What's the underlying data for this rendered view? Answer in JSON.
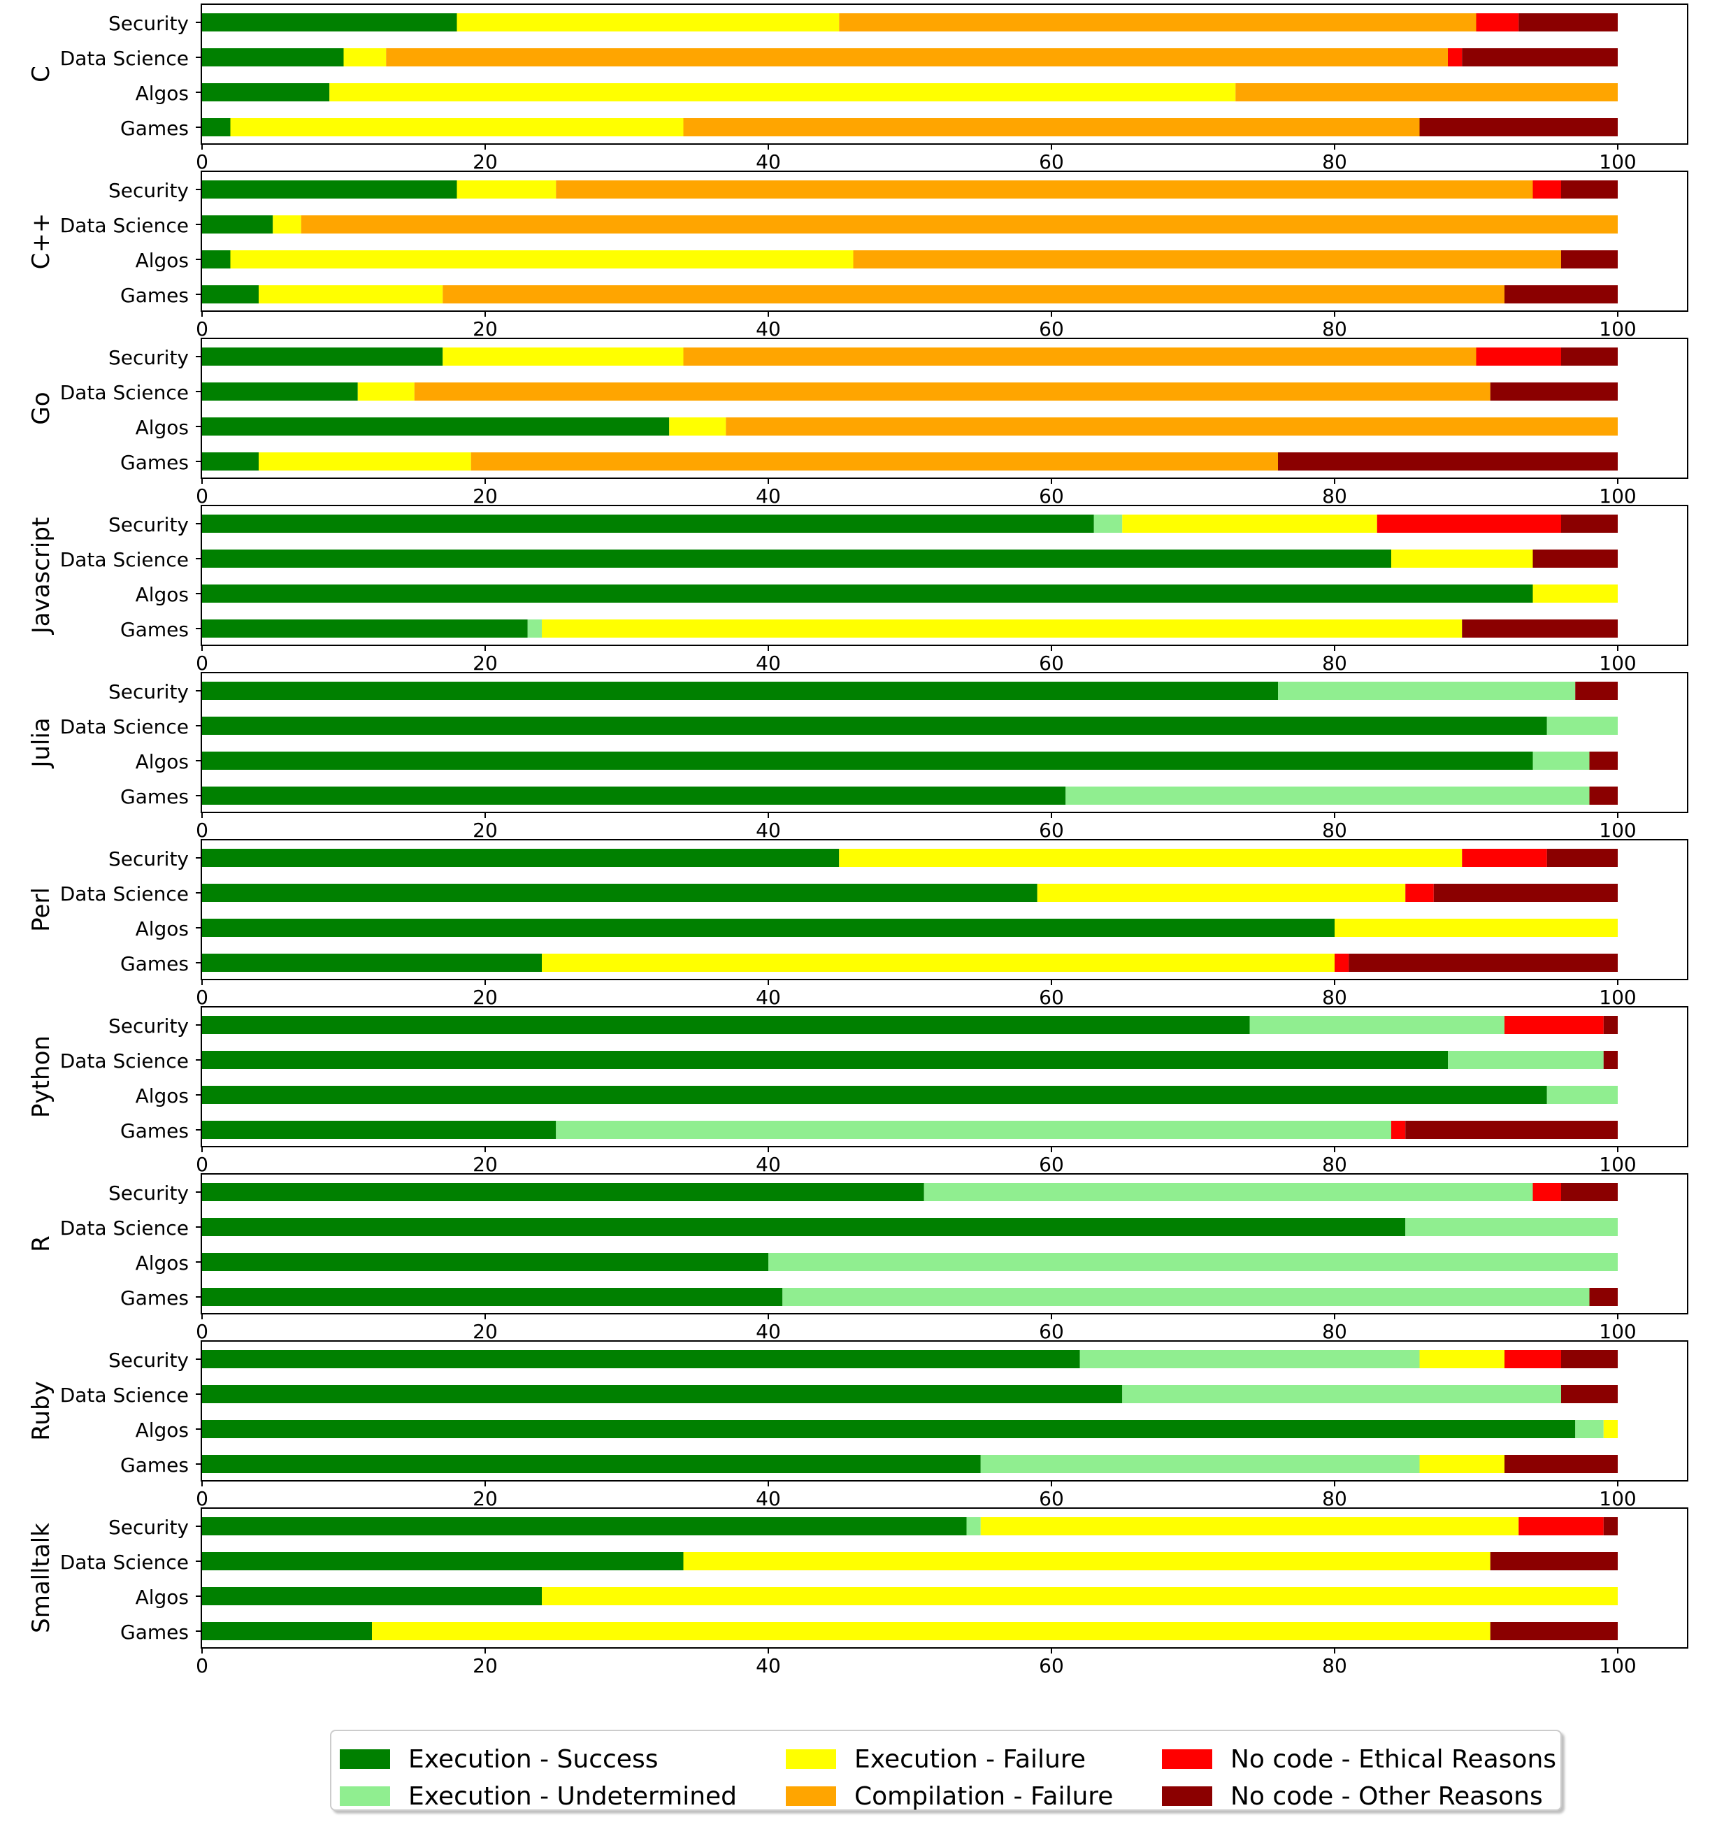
{
  "chart_data": {
    "type": "bar",
    "orientation": "horizontal",
    "stacked": true,
    "xlim": [
      0,
      100
    ],
    "xticks": [
      "0",
      "20",
      "40",
      "60",
      "80",
      "100"
    ],
    "grid": false,
    "legend_position": "bottom-center",
    "series_order": [
      "success",
      "undetermined",
      "exec_fail",
      "compile_fail",
      "ethical",
      "other"
    ],
    "series_colors": {
      "success": "#008000",
      "undetermined": "#90ee90",
      "exec_fail": "#ffff00",
      "compile_fail": "#ffa500",
      "ethical": "#ff0000",
      "other": "#8b0000"
    },
    "legend": [
      {
        "key": "success",
        "label": "Execution - Success"
      },
      {
        "key": "undetermined",
        "label": "Execution - Undetermined"
      },
      {
        "key": "exec_fail",
        "label": "Execution - Failure"
      },
      {
        "key": "compile_fail",
        "label": "Compilation - Failure"
      },
      {
        "key": "ethical",
        "label": "No code - Ethical Reasons"
      },
      {
        "key": "other",
        "label": "No code - Other Reasons"
      }
    ],
    "panels": [
      {
        "language": "C",
        "rows": [
          {
            "category": "Security",
            "values": [
              18,
              0,
              27,
              45,
              3,
              7
            ]
          },
          {
            "category": "Data Science",
            "values": [
              10,
              0,
              3,
              75,
              1,
              11
            ]
          },
          {
            "category": "Algos",
            "values": [
              9,
              0,
              64,
              27,
              0,
              0
            ]
          },
          {
            "category": "Games",
            "values": [
              2,
              0,
              32,
              52,
              0,
              14
            ]
          }
        ]
      },
      {
        "language": "C++",
        "rows": [
          {
            "category": "Security",
            "values": [
              18,
              0,
              7,
              69,
              2,
              4
            ]
          },
          {
            "category": "Data Science",
            "values": [
              5,
              0,
              2,
              93,
              0,
              0
            ]
          },
          {
            "category": "Algos",
            "values": [
              2,
              0,
              44,
              50,
              0,
              4
            ]
          },
          {
            "category": "Games",
            "values": [
              4,
              0,
              13,
              75,
              0,
              8
            ]
          }
        ]
      },
      {
        "language": "Go",
        "rows": [
          {
            "category": "Security",
            "values": [
              17,
              0,
              17,
              56,
              6,
              4
            ]
          },
          {
            "category": "Data Science",
            "values": [
              11,
              0,
              4,
              76,
              0,
              9
            ]
          },
          {
            "category": "Algos",
            "values": [
              33,
              0,
              4,
              63,
              0,
              0
            ]
          },
          {
            "category": "Games",
            "values": [
              4,
              0,
              15,
              57,
              0,
              24
            ]
          }
        ]
      },
      {
        "language": "Javascript",
        "rows": [
          {
            "category": "Security",
            "values": [
              63,
              2,
              18,
              0,
              13,
              4
            ]
          },
          {
            "category": "Data Science",
            "values": [
              84,
              0,
              10,
              0,
              0,
              6
            ]
          },
          {
            "category": "Algos",
            "values": [
              94,
              0,
              6,
              0,
              0,
              0
            ]
          },
          {
            "category": "Games",
            "values": [
              23,
              1,
              65,
              0,
              0,
              11
            ]
          }
        ]
      },
      {
        "language": "Julia",
        "rows": [
          {
            "category": "Security",
            "values": [
              76,
              21,
              0,
              0,
              0,
              3
            ]
          },
          {
            "category": "Data Science",
            "values": [
              95,
              5,
              0,
              0,
              0,
              0
            ]
          },
          {
            "category": "Algos",
            "values": [
              94,
              4,
              0,
              0,
              0,
              2
            ]
          },
          {
            "category": "Games",
            "values": [
              61,
              37,
              0,
              0,
              0,
              2
            ]
          }
        ]
      },
      {
        "language": "Perl",
        "rows": [
          {
            "category": "Security",
            "values": [
              45,
              0,
              44,
              0,
              6,
              5
            ]
          },
          {
            "category": "Data Science",
            "values": [
              59,
              0,
              26,
              0,
              2,
              13
            ]
          },
          {
            "category": "Algos",
            "values": [
              80,
              0,
              20,
              0,
              0,
              0
            ]
          },
          {
            "category": "Games",
            "values": [
              24,
              0,
              56,
              0,
              1,
              19
            ]
          }
        ]
      },
      {
        "language": "Python",
        "rows": [
          {
            "category": "Security",
            "values": [
              74,
              18,
              0,
              0,
              7,
              1
            ]
          },
          {
            "category": "Data Science",
            "values": [
              88,
              11,
              0,
              0,
              0,
              1
            ]
          },
          {
            "category": "Algos",
            "values": [
              95,
              5,
              0,
              0,
              0,
              0
            ]
          },
          {
            "category": "Games",
            "values": [
              25,
              59,
              0,
              0,
              1,
              15
            ]
          }
        ]
      },
      {
        "language": "R",
        "rows": [
          {
            "category": "Security",
            "values": [
              51,
              43,
              0,
              0,
              2,
              4
            ]
          },
          {
            "category": "Data Science",
            "values": [
              85,
              15,
              0,
              0,
              0,
              0
            ]
          },
          {
            "category": "Algos",
            "values": [
              40,
              60,
              0,
              0,
              0,
              0
            ]
          },
          {
            "category": "Games",
            "values": [
              41,
              57,
              0,
              0,
              0,
              2
            ]
          }
        ]
      },
      {
        "language": "Ruby",
        "rows": [
          {
            "category": "Security",
            "values": [
              62,
              24,
              6,
              0,
              4,
              4
            ]
          },
          {
            "category": "Data Science",
            "values": [
              65,
              31,
              0,
              0,
              0,
              4
            ]
          },
          {
            "category": "Algos",
            "values": [
              97,
              2,
              1,
              0,
              0,
              0
            ]
          },
          {
            "category": "Games",
            "values": [
              55,
              31,
              6,
              0,
              0,
              8
            ]
          }
        ]
      },
      {
        "language": "Smalltalk",
        "rows": [
          {
            "category": "Security",
            "values": [
              54,
              1,
              38,
              0,
              6,
              1
            ]
          },
          {
            "category": "Data Science",
            "values": [
              34,
              0,
              57,
              0,
              0,
              9
            ]
          },
          {
            "category": "Algos",
            "values": [
              24,
              0,
              76,
              0,
              0,
              0
            ]
          },
          {
            "category": "Games",
            "values": [
              12,
              0,
              79,
              0,
              0,
              9
            ]
          }
        ]
      }
    ]
  }
}
